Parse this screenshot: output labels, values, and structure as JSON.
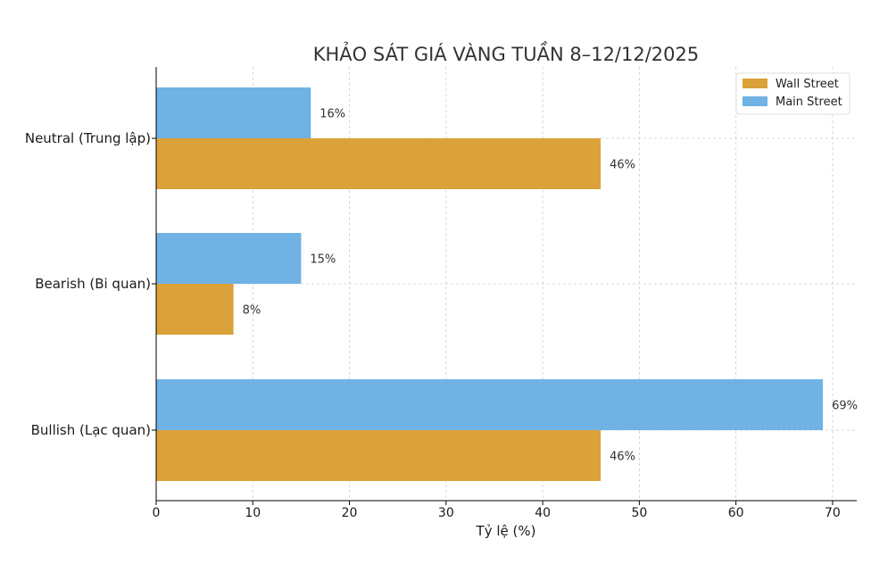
{
  "chart_data": {
    "type": "bar",
    "orientation": "horizontal",
    "title": "KHẢO SÁT GIÁ VÀNG TUẦN 8–12/12/2025",
    "xlabel": "Tỷ lệ (%)",
    "ylabel": "",
    "categories": [
      "Bullish (Lạc quan)",
      "Bearish (Bi quan)",
      "Neutral (Trung lập)"
    ],
    "series": [
      {
        "name": "Wall Street",
        "color": "#dba239",
        "values": [
          46,
          8,
          46
        ],
        "labels": [
          "46%",
          "8%",
          "46%"
        ]
      },
      {
        "name": "Main Street",
        "color": "#6fb2e3",
        "values": [
          69,
          15,
          16
        ],
        "labels": [
          "69%",
          "15%",
          "16%"
        ]
      }
    ],
    "xlim": [
      0,
      72.5
    ],
    "xticks": [
      0,
      10,
      20,
      30,
      40,
      50,
      60,
      70
    ],
    "xtick_labels": [
      "0",
      "10",
      "20",
      "30",
      "40",
      "50",
      "60",
      "70"
    ],
    "grid": true,
    "legend_position": "top-right"
  }
}
